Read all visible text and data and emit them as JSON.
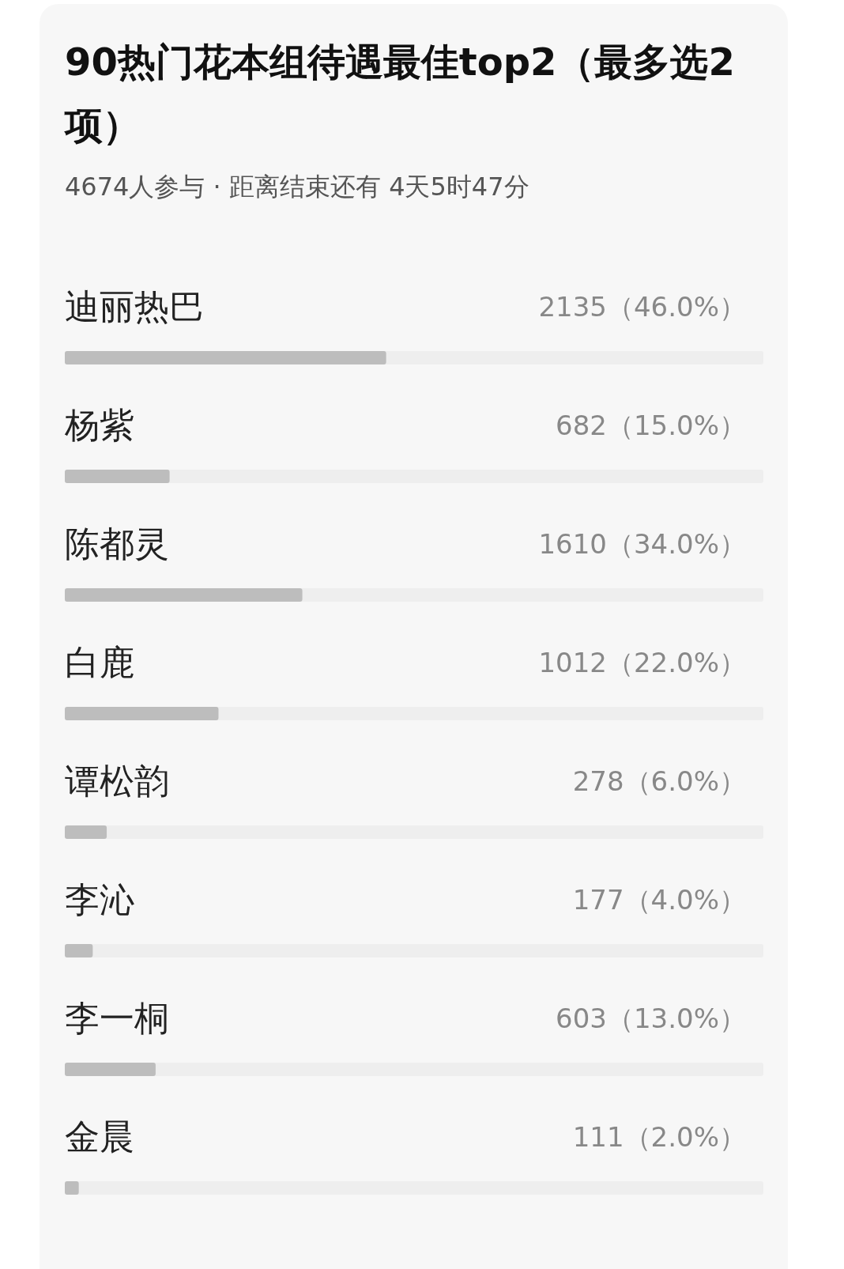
{
  "chart_data": {
    "type": "bar",
    "orientation": "horizontal",
    "title": "90热门花本组待遇最佳top2（最多选2项）",
    "subtitle": "4674人参与 · 距离结束还有 4天5时47分",
    "categories": [
      "迪丽热巴",
      "杨紫",
      "陈都灵",
      "白鹿",
      "谭松韵",
      "李沁",
      "李一桐",
      "金晨"
    ],
    "values": [
      46.0,
      15.0,
      34.0,
      22.0,
      6.0,
      4.0,
      13.0,
      2.0
    ],
    "value_labels": [
      "2135（46.0%）",
      "682（15.0%）",
      "1610（34.0%）",
      "1012（22.0%）",
      "278（6.0%）",
      "177（4.0%）",
      "603（13.0%）",
      "111（2.0%）"
    ],
    "color": "#bdbdbd",
    "xlim": [
      0,
      100
    ],
    "tick_labels": false
  }
}
